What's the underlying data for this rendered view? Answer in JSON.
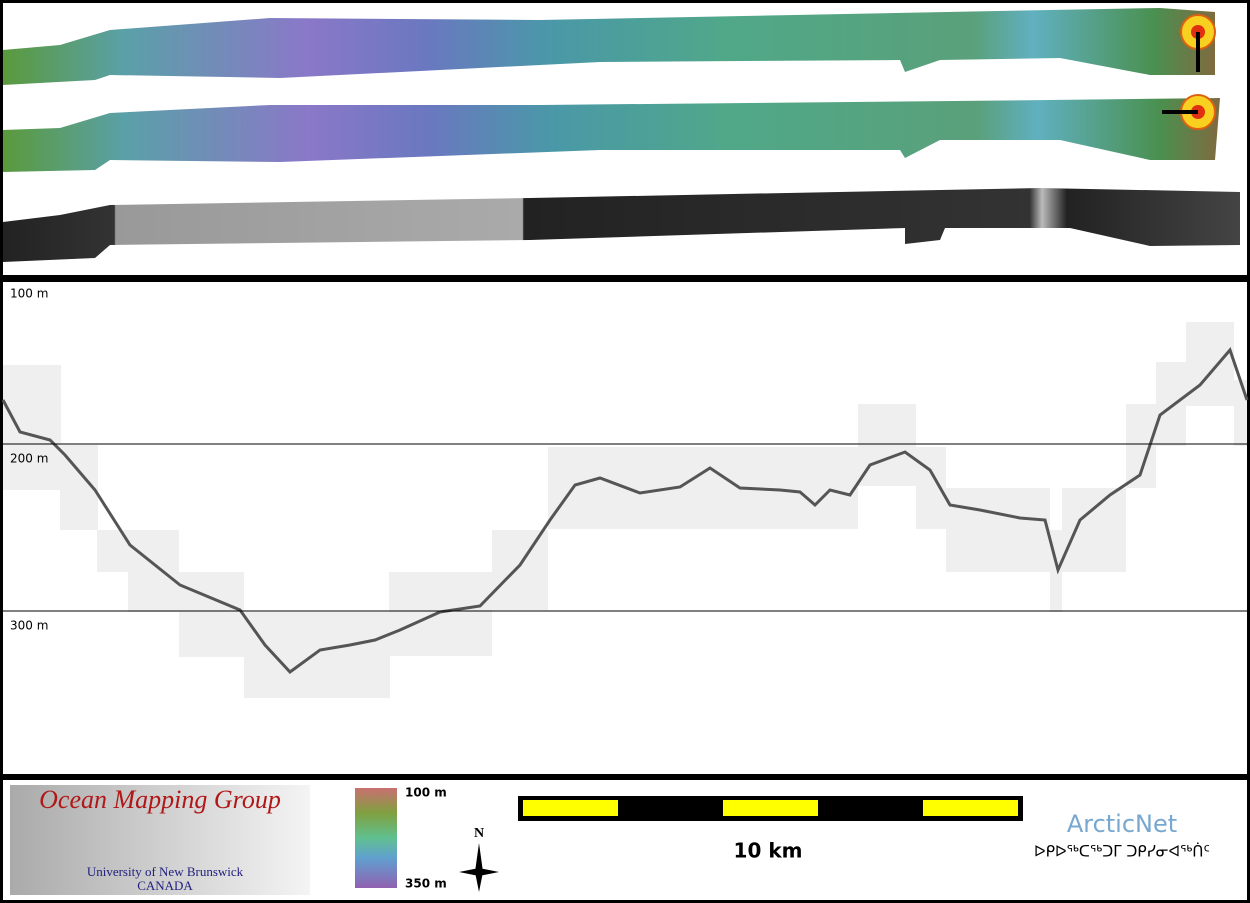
{
  "profile": {
    "depth_labels": [
      "100 m",
      "200 m",
      "300 m"
    ]
  },
  "legend": {
    "logo": {
      "title": "Ocean Mapping Group",
      "line1": "University of New Brunswick",
      "line2": "CANADA"
    },
    "colorbar": {
      "top": "100 m",
      "bottom": "350 m"
    },
    "north": "N",
    "scale": "10 km",
    "partner": {
      "name": "ArcticNet",
      "syllabics": "ᐅᑭᐅᖅᑕᖅᑐᒥ ᑐᑭᓯᓂᐊᖅᑏᑦ"
    }
  }
}
